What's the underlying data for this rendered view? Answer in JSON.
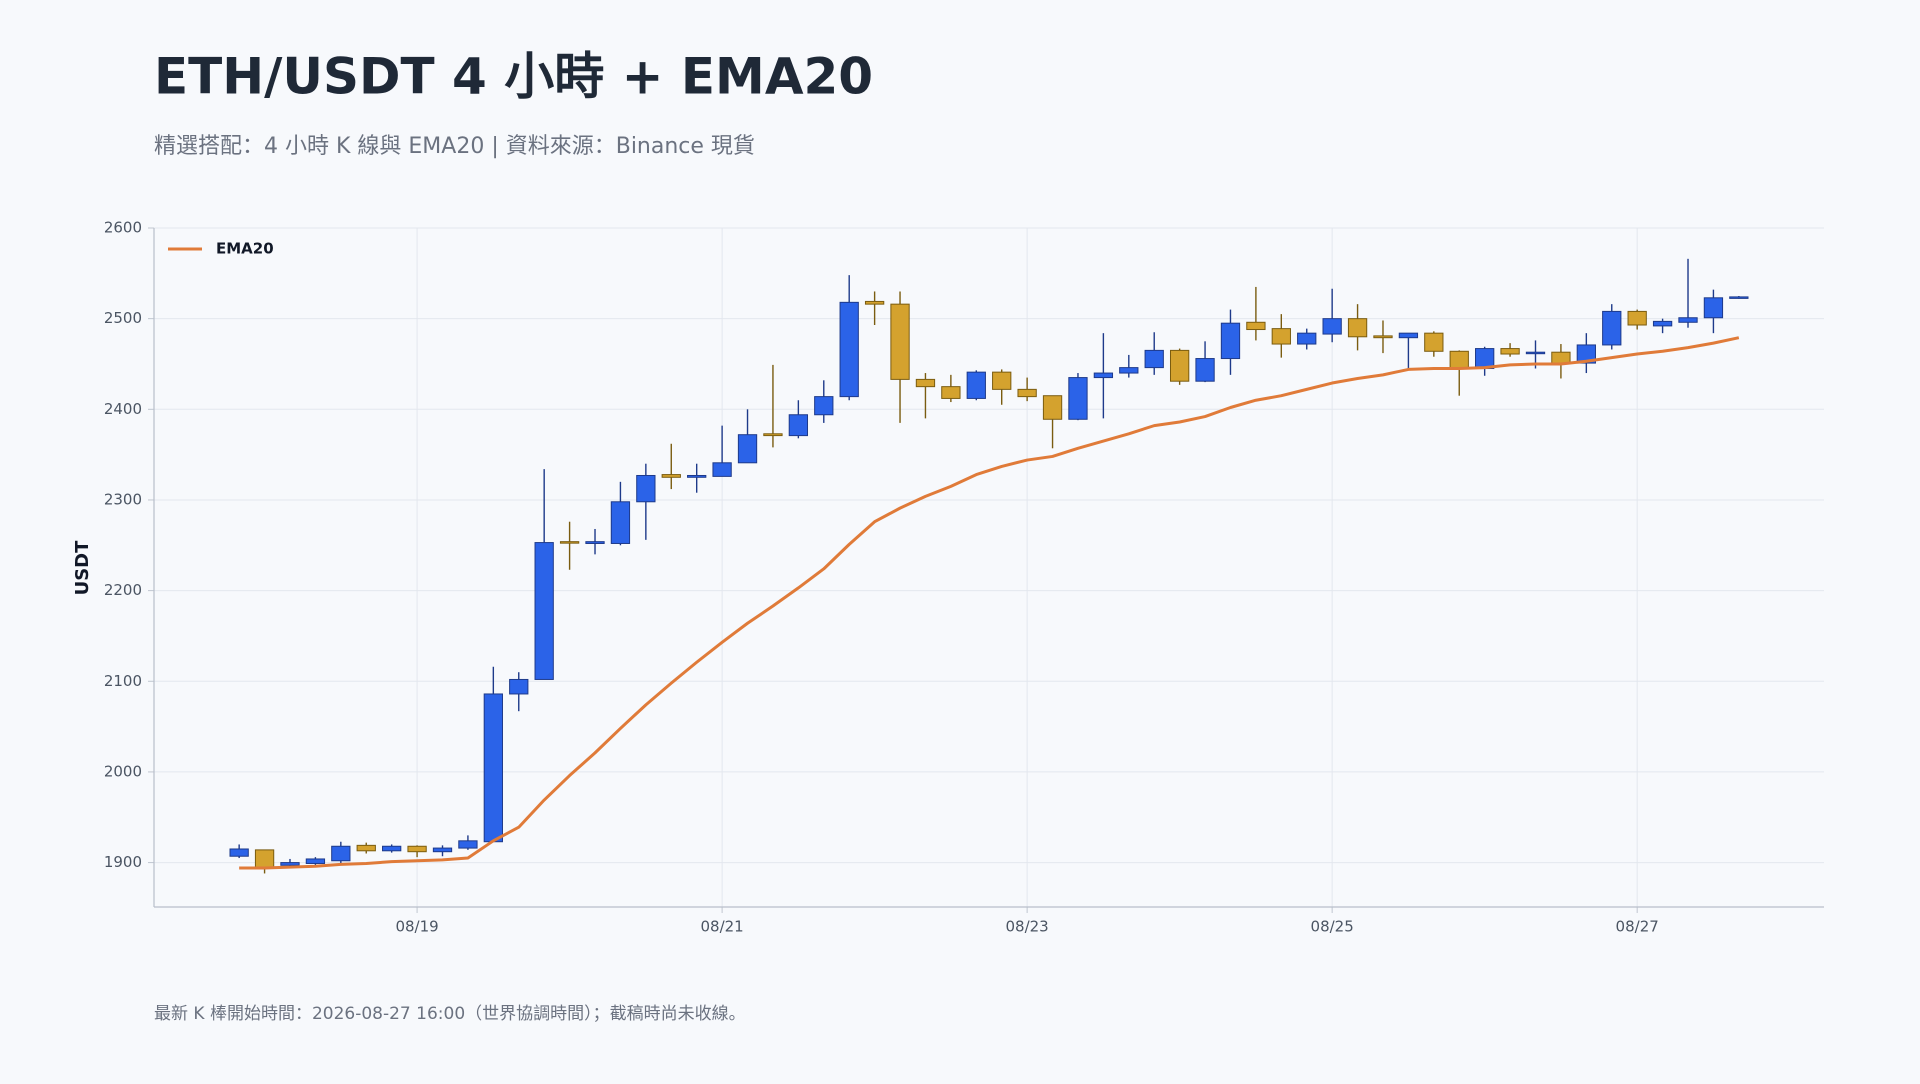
{
  "chart_data": {
    "type": "candlestick",
    "title": "ETH/USDT 4 小時 + EMA20",
    "subtitle": "精選搭配：4 小時 K 線與 EMA20 | 資料來源：Binance 現貨",
    "y_label": "USDT",
    "footnote": "最新 K 棒開始時間：2026-08-27 16:00（世界協調時間）；截稿時尚未收線。",
    "categories": [
      null,
      null,
      null,
      null,
      null,
      null,
      null,
      "08/19",
      null,
      null,
      null,
      null,
      null,
      null,
      null,
      null,
      null,
      null,
      null,
      "08/21",
      null,
      null,
      null,
      null,
      null,
      null,
      null,
      null,
      null,
      null,
      null,
      "08/23",
      null,
      null,
      null,
      null,
      null,
      null,
      null,
      null,
      null,
      null,
      null,
      "08/25",
      null,
      null,
      null,
      null,
      null,
      null,
      null,
      null,
      null,
      null,
      null,
      "08/27",
      null,
      null,
      null,
      null
    ],
    "open": [
      1907,
      1914,
      1897,
      1899,
      1902,
      1919,
      1913,
      1918,
      1912,
      1916,
      1923,
      2086,
      2102,
      2254,
      2252,
      2252,
      2298,
      2328,
      2325,
      2326,
      2341,
      2373,
      2371,
      2394,
      2414,
      2519,
      2516,
      2433,
      2425,
      2412,
      2441,
      2422,
      2415,
      2389,
      2435,
      2440,
      2446,
      2465,
      2431,
      2456,
      2496,
      2489,
      2472,
      2483,
      2500,
      2481,
      2479,
      2484,
      2464,
      2445,
      2467,
      2462,
      2463,
      2451,
      2471,
      2508,
      2492,
      2496,
      2501,
      2523
    ],
    "high": [
      1920,
      1914,
      1904,
      1906,
      1923,
      1922,
      1920,
      1919,
      1919,
      1930,
      2116,
      2110,
      2334,
      2276,
      2268,
      2320,
      2340,
      2362,
      2340,
      2382,
      2400,
      2449,
      2410,
      2432,
      2548,
      2530,
      2530,
      2440,
      2438,
      2443,
      2444,
      2435,
      2415,
      2440,
      2484,
      2460,
      2485,
      2467,
      2475,
      2510,
      2535,
      2505,
      2489,
      2533,
      2516,
      2498,
      2484,
      2486,
      2465,
      2469,
      2473,
      2476,
      2472,
      2484,
      2516,
      2510,
      2500,
      2566,
      2532,
      2525
    ],
    "low": [
      1905,
      1888,
      1895,
      1897,
      1897,
      1910,
      1911,
      1906,
      1907,
      1914,
      1923,
      2067,
      2102,
      2223,
      2240,
      2250,
      2256,
      2312,
      2308,
      2326,
      2341,
      2358,
      2368,
      2385,
      2410,
      2493,
      2385,
      2390,
      2408,
      2410,
      2405,
      2409,
      2357,
      2388,
      2390,
      2435,
      2438,
      2427,
      2430,
      2438,
      2476,
      2457,
      2466,
      2474,
      2465,
      2462,
      2443,
      2458,
      2415,
      2437,
      2458,
      2445,
      2434,
      2440,
      2466,
      2488,
      2484,
      2490,
      2484,
      2522
    ],
    "close": [
      1915,
      1895,
      1900,
      1904,
      1918,
      1913,
      1918,
      1912,
      1916,
      1924,
      2086,
      2102,
      2253,
      2253,
      2254,
      2298,
      2327,
      2325,
      2327,
      2341,
      2372,
      2371,
      2394,
      2414,
      2518,
      2516,
      2433,
      2425,
      2412,
      2441,
      2422,
      2414,
      2389,
      2435,
      2440,
      2446,
      2465,
      2431,
      2456,
      2495,
      2488,
      2472,
      2484,
      2500,
      2480,
      2479,
      2484,
      2464,
      2445,
      2467,
      2461,
      2463,
      2451,
      2471,
      2508,
      2493,
      2497,
      2501,
      2523,
      2524
    ],
    "up_color": "#2b63e8",
    "down_color": "#d4a22e",
    "series": [
      {
        "name": "EMA20",
        "type": "line",
        "color": "#e07b39",
        "values": [
          1894,
          1894,
          1895,
          1896,
          1898,
          1899,
          1901,
          1902,
          1903,
          1905,
          1924,
          1939,
          1969,
          1996,
          2021,
          2048,
          2074,
          2098,
          2121,
          2143,
          2164,
          2183,
          2203,
          2224,
          2251,
          2276,
          2291,
          2304,
          2315,
          2328,
          2337,
          2344,
          2348,
          2357,
          2365,
          2373,
          2382,
          2386,
          2392,
          2402,
          2410,
          2415,
          2422,
          2429,
          2434,
          2438,
          2444,
          2445,
          2445,
          2446,
          2449,
          2450,
          2450,
          2453,
          2457,
          2461,
          2464,
          2468,
          2473,
          2479
        ]
      }
    ],
    "ylim": [
      1851,
      2600
    ],
    "yticks": [
      1900,
      2000,
      2100,
      2200,
      2300,
      2400,
      2500,
      2600
    ],
    "grid": true,
    "legend": "upper left"
  }
}
